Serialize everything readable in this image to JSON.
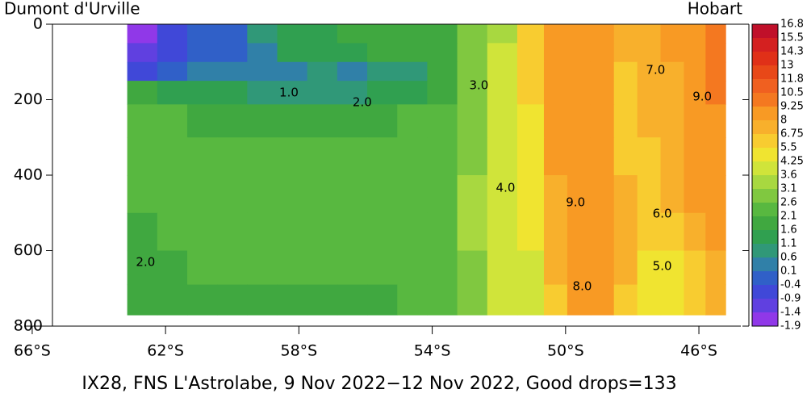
{
  "chart_data": {
    "type": "heatmap",
    "title_left": "Dumont d'Urville",
    "title_right": "Hobart",
    "footer": "IX28, FNS L'Astrolabe,  9 Nov 2022−12 Nov 2022, Good drops=133",
    "xlim": [
      -66.24,
      -44.5
    ],
    "ylim": [
      800,
      0
    ],
    "xticks": [
      {
        "value": -66,
        "label": "66°S"
      },
      {
        "value": -62,
        "label": "62°S"
      },
      {
        "value": -58,
        "label": "58°S"
      },
      {
        "value": -54,
        "label": "54°S"
      },
      {
        "value": -50,
        "label": "50°S"
      },
      {
        "value": -46,
        "label": "46°S"
      }
    ],
    "yticks": [
      0,
      200,
      400,
      600,
      800
    ],
    "x": [
      -62.7,
      -61.8,
      -60.9,
      -60.0,
      -59.1,
      -58.2,
      -57.3,
      -56.4,
      -55.5,
      -54.6,
      -53.7,
      -52.8,
      -51.9,
      -51.0,
      -50.3,
      -49.6,
      -48.9,
      -48.2,
      -47.5,
      -46.8,
      -46.1,
      -45.5
    ],
    "depths": [
      25,
      75,
      125,
      175,
      250,
      350,
      450,
      550,
      650,
      730
    ],
    "z": [
      [
        -1.5,
        -0.8,
        -0.3,
        0.0,
        0.6,
        1.3,
        1.5,
        1.6,
        1.7,
        1.8,
        2.0,
        2.6,
        3.5,
        6.5,
        8.8,
        8.9,
        8.6,
        7.0,
        7.4,
        8.0,
        9.0,
        9.4
      ],
      [
        -1.4,
        -0.9,
        -0.3,
        0.0,
        0.5,
        1.2,
        1.4,
        1.5,
        1.6,
        1.7,
        2.0,
        2.7,
        3.6,
        6.5,
        8.9,
        9.0,
        8.6,
        6.8,
        7.3,
        8.0,
        9.0,
        9.5
      ],
      [
        -0.6,
        -0.2,
        0.1,
        0.2,
        0.3,
        0.4,
        0.6,
        0.5,
        0.8,
        0.9,
        1.8,
        2.8,
        3.7,
        6.0,
        8.8,
        9.1,
        8.5,
        6.7,
        7.2,
        7.9,
        9.0,
        9.5
      ],
      [
        1.6,
        1.5,
        1.4,
        1.2,
        1.0,
        0.8,
        0.9,
        0.9,
        1.1,
        1.3,
        1.9,
        2.8,
        3.7,
        5.6,
        8.6,
        9.2,
        8.6,
        6.6,
        7.0,
        7.8,
        8.9,
        9.4
      ],
      [
        2.1,
        2.1,
        2.0,
        2.0,
        2.0,
        2.0,
        2.0,
        2.0,
        2.0,
        2.1,
        2.3,
        2.9,
        3.8,
        5.2,
        8.4,
        9.2,
        8.8,
        6.6,
        6.8,
        7.6,
        8.7,
        9.2
      ],
      [
        2.2,
        2.2,
        2.1,
        2.1,
        2.1,
        2.1,
        2.1,
        2.1,
        2.1,
        2.2,
        2.4,
        3.0,
        3.8,
        4.8,
        8.2,
        9.2,
        8.9,
        6.6,
        6.7,
        7.4,
        8.5,
        9.0
      ],
      [
        2.1,
        2.2,
        2.2,
        2.2,
        2.2,
        2.2,
        2.2,
        2.2,
        2.2,
        2.3,
        2.5,
        3.1,
        3.9,
        4.6,
        7.9,
        9.1,
        8.9,
        6.8,
        6.4,
        7.1,
        8.2,
        8.8
      ],
      [
        1.9,
        2.1,
        2.2,
        2.2,
        2.2,
        2.2,
        2.2,
        2.2,
        2.2,
        2.3,
        2.5,
        3.1,
        3.9,
        4.4,
        7.5,
        9.0,
        8.8,
        7.0,
        6.0,
        6.5,
        7.8,
        8.5
      ],
      [
        1.9,
        2.0,
        2.1,
        2.1,
        2.1,
        2.1,
        2.1,
        2.1,
        2.1,
        2.2,
        2.4,
        3.0,
        3.8,
        4.2,
        6.8,
        8.6,
        8.4,
        6.8,
        5.2,
        5.0,
        6.4,
        7.6
      ],
      [
        1.9,
        1.9,
        2.0,
        2.0,
        2.0,
        2.0,
        2.0,
        2.0,
        2.0,
        2.1,
        2.3,
        2.9,
        3.7,
        4.1,
        6.2,
        8.2,
        8.1,
        6.5,
        4.8,
        4.6,
        5.6,
        7.0
      ]
    ],
    "contour_labels": [
      {
        "text": "1.0",
        "x": -58.3,
        "y": 182
      },
      {
        "text": "2.0",
        "x": -56.1,
        "y": 207
      },
      {
        "text": "3.0",
        "x": -52.6,
        "y": 163
      },
      {
        "text": "4.0",
        "x": -51.8,
        "y": 434
      },
      {
        "text": "9.0",
        "x": -45.9,
        "y": 193
      },
      {
        "text": "7.0",
        "x": -47.3,
        "y": 122
      },
      {
        "text": "9.0",
        "x": -49.7,
        "y": 473
      },
      {
        "text": "6.0",
        "x": -47.1,
        "y": 503
      },
      {
        "text": "5.0",
        "x": -47.1,
        "y": 642
      },
      {
        "text": "8.0",
        "x": -49.5,
        "y": 695
      },
      {
        "text": "2.0",
        "x": -62.6,
        "y": 631
      }
    ],
    "colorbar": {
      "levels": [
        16.8,
        15.5,
        14.3,
        13,
        11.8,
        10.5,
        9.25,
        8,
        6.75,
        5.5,
        4.25,
        3.6,
        3.1,
        2.6,
        2.1,
        1.6,
        1.1,
        0.6,
        0.1,
        -0.4,
        -0.9,
        -1.4,
        -1.9
      ],
      "colors": [
        "#c0102a",
        "#d42020",
        "#e03018",
        "#e84818",
        "#f06020",
        "#f47820",
        "#f89a24",
        "#f8b02c",
        "#f8cc30",
        "#f0e430",
        "#d0e43a",
        "#a8d840",
        "#80c840",
        "#58b840",
        "#40a840",
        "#30a050",
        "#309878",
        "#3080a8",
        "#3060c8",
        "#4048d8",
        "#6040e0",
        "#9038e8"
      ]
    }
  }
}
